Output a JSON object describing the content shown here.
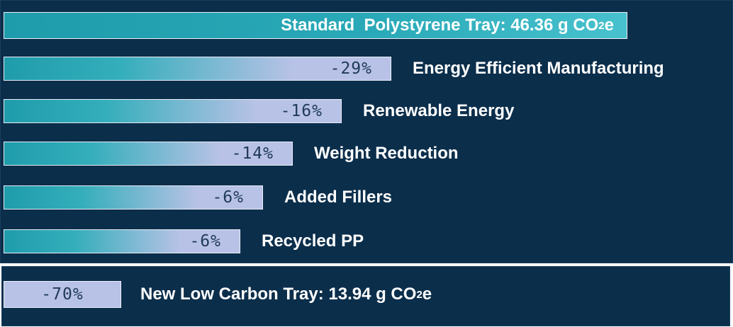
{
  "chart_data": {
    "type": "bar",
    "title": "",
    "baseline": {
      "prefix": "Standard  Polystyrene Tray: ",
      "value_text": "46.36 g CO",
      "subscript": "2",
      "suffix": "e"
    },
    "categories": [
      "Energy Efficient Manufacturing",
      "Renewable Energy",
      "Weight Reduction",
      "Added Fillers",
      "Recycled PP"
    ],
    "values": [
      -29,
      -16,
      -14,
      -6,
      -6
    ],
    "value_labels": [
      "-29%",
      "-16%",
      "-14%",
      "-6%",
      "-6%"
    ],
    "total": {
      "value": -70,
      "value_label": "-70%",
      "prefix": "New Low Carbon Tray: ",
      "value_text": "13.94 g CO",
      "subscript": "2",
      "suffix": "e"
    }
  },
  "colors": {
    "background": "#0b2e4b",
    "bar_teal": "#1f9cab",
    "bar_lavender": "#b8c2e6",
    "text_light": "#ffffff",
    "text_dark": "#1f3a57"
  }
}
